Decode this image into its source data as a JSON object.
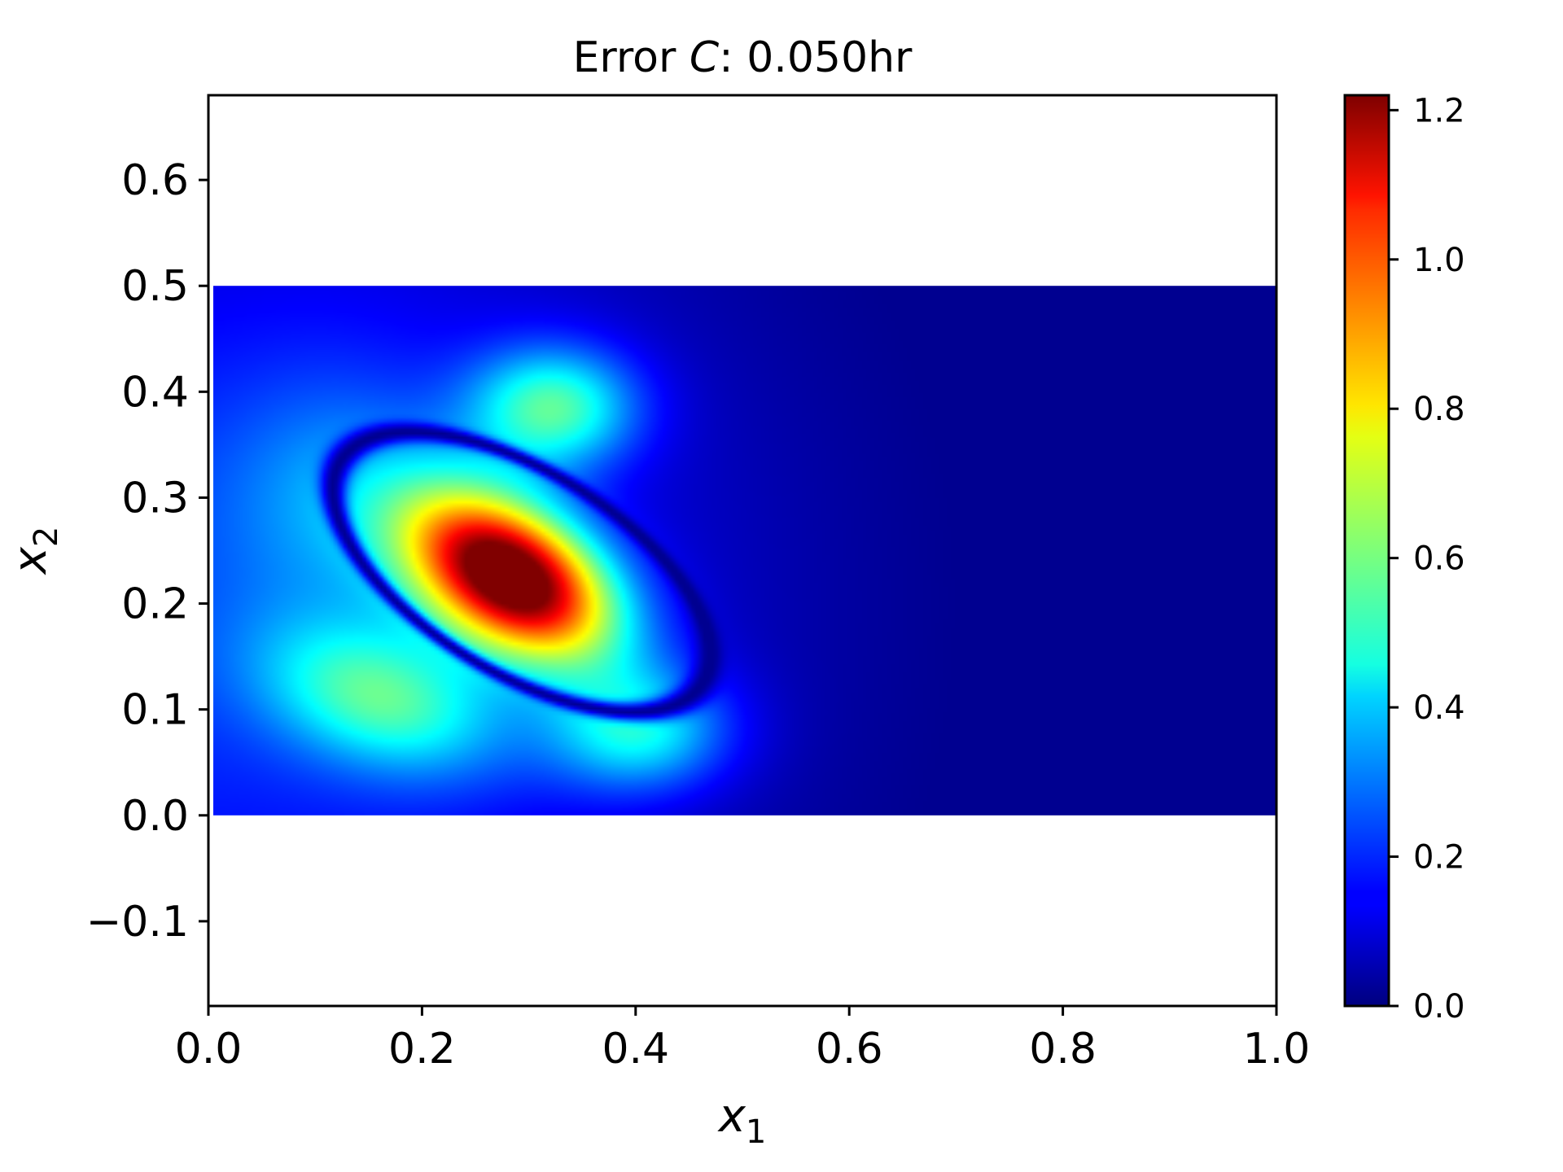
{
  "chart_data": {
    "type": "heatmap",
    "title": {
      "prefix": "Error ",
      "variable": "C",
      "suffix": ": 0.050hr"
    },
    "xlabel": {
      "symbol": "x",
      "subscript": "1"
    },
    "ylabel": {
      "symbol": "x",
      "subscript": "2"
    },
    "xlim": [
      0.0,
      1.0
    ],
    "ylim": [
      -0.18,
      0.68
    ],
    "x_ticks": [
      0.0,
      0.2,
      0.4,
      0.6,
      0.8,
      1.0
    ],
    "x_tick_labels": [
      "0.0",
      "0.2",
      "0.4",
      "0.6",
      "0.8",
      "1.0"
    ],
    "y_ticks": [
      0.6,
      0.5,
      0.4,
      0.3,
      0.2,
      0.1,
      0.0,
      -0.1
    ],
    "y_tick_labels": [
      "0.6",
      "0.5",
      "0.4",
      "0.3",
      "0.2",
      "0.1",
      "0.0",
      "−0.1"
    ],
    "data_extent": {
      "x": [
        0.0,
        1.0
      ],
      "y": [
        0.0,
        0.5
      ]
    },
    "colormap": "jet",
    "colorbar": {
      "range": [
        0.0,
        1.22
      ],
      "ticks": [
        0.0,
        0.2,
        0.4,
        0.6,
        0.8,
        1.0,
        1.2
      ],
      "tick_labels": [
        "0.0",
        "0.2",
        "0.4",
        "0.6",
        "0.8",
        "1.0",
        "1.2"
      ]
    },
    "field_features": [
      {
        "feature": "peak",
        "x": 0.28,
        "y": 0.225,
        "value": 1.22
      },
      {
        "feature": "secondary-max",
        "x": 0.32,
        "y": 0.385,
        "value": 0.45
      },
      {
        "feature": "secondary-max",
        "x": 0.16,
        "y": 0.11,
        "value": 0.38
      },
      {
        "feature": "secondary-max",
        "x": 0.4,
        "y": 0.08,
        "value": 0.37
      },
      {
        "feature": "background",
        "x": 0.8,
        "y": 0.25,
        "value": 0.02
      }
    ],
    "grid": false,
    "legend": "none"
  }
}
